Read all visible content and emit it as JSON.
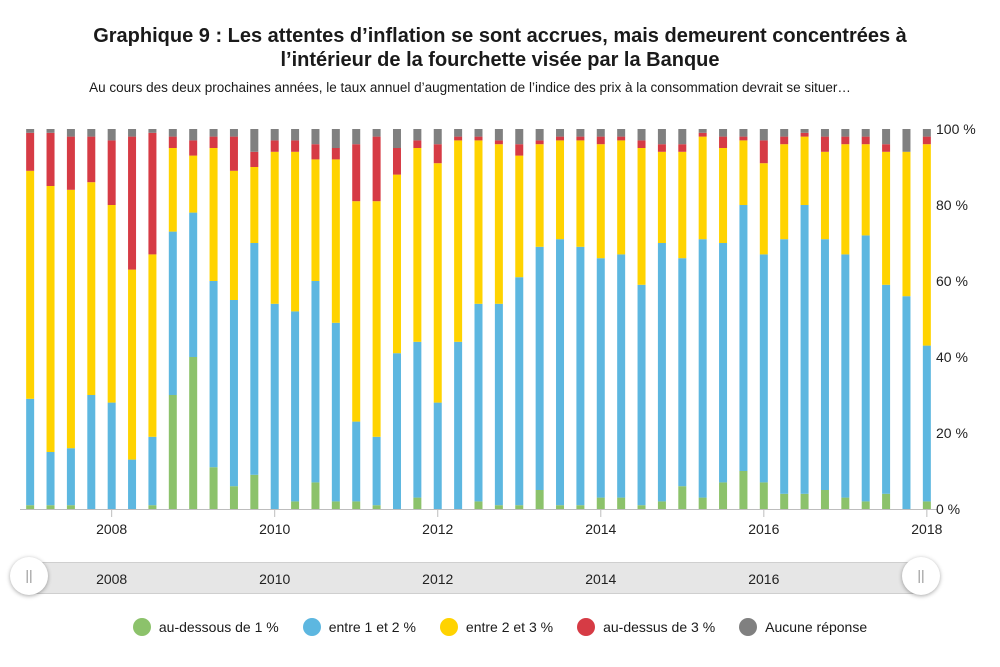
{
  "title_line1": "Graphique 9 : Les attentes d’inflation se sont accrues, mais demeurent concentrées à",
  "title_line2": "l’intérieur de la fourchette visée par la Banque",
  "subtitle": "Au cours des deux prochaines années, le taux annuel d’augmentation de l’indice des prix à la consommation devrait se situer…",
  "navigator": {
    "years": [
      "2008",
      "2010",
      "2012",
      "2014",
      "2016"
    ],
    "left_handle": "||",
    "right_handle": "||"
  },
  "legend": [
    {
      "label": "au-dessous de 1 %",
      "color": "#8cc26b"
    },
    {
      "label": "entre 1 et 2 %",
      "color": "#5db7e0"
    },
    {
      "label": "entre 2 et 3 %",
      "color": "#ffd300"
    },
    {
      "label": "au-dessus de 3 %",
      "color": "#d63b45"
    },
    {
      "label": "Aucune réponse",
      "color": "#808080"
    }
  ],
  "chart_data": {
    "type": "bar",
    "stacked": true,
    "orientation": "vertical",
    "title": "",
    "ylim": [
      0,
      100
    ],
    "yticks": [
      "0 %",
      "20 %",
      "40 %",
      "60 %",
      "80 %",
      "100 %"
    ],
    "ytick_values": [
      0,
      20,
      40,
      60,
      80,
      100
    ],
    "y_axis_position": "right",
    "xticks": [
      "2008",
      "2010",
      "2012",
      "2014",
      "2016",
      "2018"
    ],
    "xtick_values": [
      2008,
      2010,
      2012,
      2014,
      2016,
      2018
    ],
    "x_range": [
      2006.9,
      2018.1
    ],
    "grid": false,
    "legend_position": "bottom",
    "x": [
      2007.0,
      2007.25,
      2007.5,
      2007.75,
      2008.0,
      2008.25,
      2008.5,
      2008.75,
      2009.0,
      2009.25,
      2009.5,
      2009.75,
      2010.0,
      2010.25,
      2010.5,
      2010.75,
      2011.0,
      2011.25,
      2011.5,
      2011.75,
      2012.0,
      2012.25,
      2012.5,
      2012.75,
      2013.0,
      2013.25,
      2013.5,
      2013.75,
      2014.0,
      2014.25,
      2014.5,
      2014.75,
      2015.0,
      2015.25,
      2015.5,
      2015.75,
      2016.0,
      2016.25,
      2016.5,
      2016.75,
      2017.0,
      2017.25,
      2017.5,
      2017.75,
      2018.0
    ],
    "series": [
      {
        "name": "au-dessous de 1 %",
        "color": "#8cc26b",
        "values": [
          1,
          1,
          1,
          0,
          0,
          0,
          1,
          30,
          40,
          11,
          6,
          9,
          0,
          2,
          7,
          2,
          2,
          1,
          0,
          3,
          0,
          0,
          2,
          1,
          1,
          5,
          1,
          1,
          3,
          3,
          1,
          2,
          6,
          3,
          7,
          10,
          7,
          4,
          4,
          5,
          3,
          2,
          4,
          0,
          2
        ]
      },
      {
        "name": "entre 1 et 2 %",
        "color": "#5db7e0",
        "values": [
          28,
          14,
          15,
          30,
          28,
          13,
          18,
          43,
          38,
          49,
          49,
          61,
          54,
          50,
          53,
          47,
          21,
          18,
          41,
          41,
          28,
          44,
          52,
          53,
          60,
          64,
          70,
          68,
          63,
          64,
          58,
          68,
          60,
          68,
          63,
          70,
          60,
          67,
          76,
          66,
          64,
          70,
          55,
          56,
          41
        ]
      },
      {
        "name": "entre 2 et 3 %",
        "color": "#ffd300",
        "values": [
          60,
          70,
          68,
          56,
          52,
          50,
          48,
          22,
          15,
          35,
          34,
          20,
          40,
          42,
          32,
          43,
          58,
          62,
          47,
          51,
          63,
          53,
          43,
          42,
          32,
          27,
          26,
          28,
          30,
          30,
          36,
          24,
          28,
          27,
          25,
          17,
          24,
          25,
          18,
          23,
          29,
          24,
          35,
          38,
          53
        ]
      },
      {
        "name": "au-dessus de 3 %",
        "color": "#d63b45",
        "values": [
          10,
          14,
          14,
          12,
          17,
          35,
          32,
          3,
          4,
          3,
          9,
          4,
          3,
          3,
          4,
          3,
          15,
          17,
          7,
          2,
          5,
          1,
          1,
          1,
          3,
          1,
          1,
          1,
          2,
          1,
          2,
          2,
          2,
          1,
          3,
          1,
          6,
          2,
          1,
          4,
          2,
          2,
          2,
          0,
          2
        ]
      },
      {
        "name": "Aucune réponse",
        "color": "#808080",
        "values": [
          1,
          1,
          2,
          2,
          3,
          2,
          1,
          2,
          3,
          2,
          2,
          6,
          3,
          3,
          4,
          5,
          4,
          2,
          5,
          3,
          4,
          2,
          2,
          3,
          4,
          3,
          2,
          2,
          2,
          2,
          3,
          4,
          4,
          1,
          2,
          2,
          3,
          2,
          1,
          2,
          2,
          2,
          4,
          6,
          2
        ]
      }
    ]
  }
}
